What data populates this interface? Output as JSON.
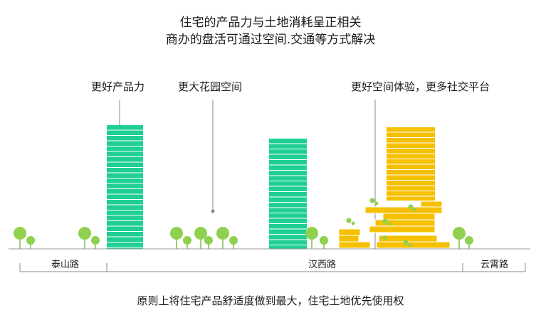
{
  "title": {
    "line1": "住宅的产品力与土地消耗呈正相关",
    "line2": "商办的盘活可通过空间.交通等方式解决"
  },
  "labels": {
    "product": "更好产品力",
    "garden": "更大花园空间",
    "social": "更好空间体验，更多社交平台"
  },
  "roads": {
    "left": "泰山路",
    "center": "汉西路",
    "right": "云霄路"
  },
  "footer": "原则上将住宅产品舒适度做到最大，住宅土地优先使用权",
  "colors": {
    "residential": "#1fcf95",
    "commercial": "#f5c000",
    "tree": "#8fd14f",
    "ground": "#999999"
  }
}
